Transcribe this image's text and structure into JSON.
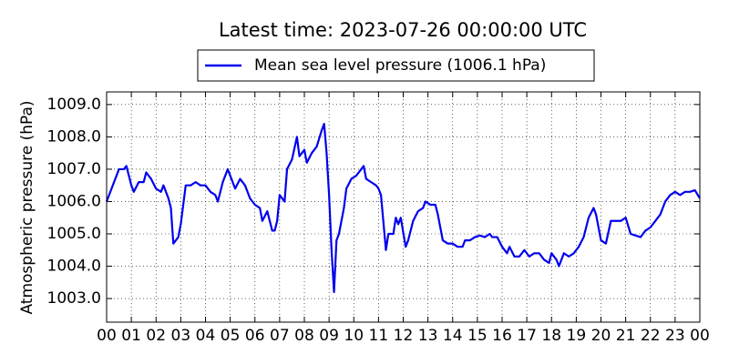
{
  "chart_data": {
    "type": "line",
    "title": "Latest time: 2023-07-26 00:00:00 UTC",
    "y_label": "Atmospheric pressure (hPa)",
    "legend": "upper center",
    "grid": true,
    "xlim": [
      0,
      24
    ],
    "ylim": [
      1002.27,
      1009.39
    ],
    "xticks": [
      {
        "value": 0,
        "label": "00"
      },
      {
        "value": 1,
        "label": "01"
      },
      {
        "value": 2,
        "label": "02"
      },
      {
        "value": 3,
        "label": "03"
      },
      {
        "value": 4,
        "label": "04"
      },
      {
        "value": 5,
        "label": "05"
      },
      {
        "value": 6,
        "label": "06"
      },
      {
        "value": 7,
        "label": "07"
      },
      {
        "value": 8,
        "label": "08"
      },
      {
        "value": 9,
        "label": "09"
      },
      {
        "value": 10,
        "label": "10"
      },
      {
        "value": 11,
        "label": "11"
      },
      {
        "value": 12,
        "label": "12"
      },
      {
        "value": 13,
        "label": "13"
      },
      {
        "value": 14,
        "label": "14"
      },
      {
        "value": 15,
        "label": "15"
      },
      {
        "value": 16,
        "label": "16"
      },
      {
        "value": 17,
        "label": "17"
      },
      {
        "value": 18,
        "label": "18"
      },
      {
        "value": 19,
        "label": "19"
      },
      {
        "value": 20,
        "label": "20"
      },
      {
        "value": 21,
        "label": "21"
      },
      {
        "value": 22,
        "label": "22"
      },
      {
        "value": 23,
        "label": "23"
      },
      {
        "value": 24,
        "label": "00"
      }
    ],
    "yticks": [
      {
        "value": 1003,
        "label": "1003.0"
      },
      {
        "value": 1004,
        "label": "1004.0"
      },
      {
        "value": 1005,
        "label": "1005.0"
      },
      {
        "value": 1006,
        "label": "1006.0"
      },
      {
        "value": 1007,
        "label": "1007.0"
      },
      {
        "value": 1008,
        "label": "1008.0"
      },
      {
        "value": 1009,
        "label": "1009.0"
      }
    ],
    "x": [
      0,
      0.3,
      0.5,
      0.7,
      0.8,
      1.0,
      1.1,
      1.3,
      1.5,
      1.6,
      1.8,
      2.0,
      2.2,
      2.3,
      2.5,
      2.6,
      2.7,
      2.9,
      3.0,
      3.2,
      3.4,
      3.6,
      3.8,
      4.0,
      4.2,
      4.4,
      4.5,
      4.7,
      4.9,
      5.1,
      5.2,
      5.4,
      5.6,
      5.8,
      6.0,
      6.2,
      6.3,
      6.5,
      6.7,
      6.8,
      6.9,
      7.0,
      7.2,
      7.3,
      7.5,
      7.7,
      7.8,
      8.0,
      8.1,
      8.3,
      8.5,
      8.7,
      8.8,
      8.9,
      9.0,
      9.1,
      9.2,
      9.3,
      9.4,
      9.6,
      9.7,
      9.9,
      10.1,
      10.3,
      10.4,
      10.5,
      10.7,
      10.9,
      11.0,
      11.1,
      11.3,
      11.4,
      11.6,
      11.7,
      11.8,
      11.9,
      12.1,
      12.2,
      12.4,
      12.6,
      12.8,
      12.9,
      13.1,
      13.3,
      13.4,
      13.6,
      13.8,
      14.0,
      14.2,
      14.4,
      14.5,
      14.7,
      14.9,
      15.1,
      15.3,
      15.5,
      15.6,
      15.8,
      16.0,
      16.2,
      16.3,
      16.5,
      16.7,
      16.9,
      17.1,
      17.3,
      17.5,
      17.7,
      17.9,
      18.0,
      18.2,
      18.3,
      18.5,
      18.7,
      18.9,
      19.1,
      19.3,
      19.5,
      19.7,
      19.8,
      20.0,
      20.2,
      20.4,
      20.6,
      20.8,
      21.0,
      21.2,
      21.4,
      21.6,
      21.8,
      22.0,
      22.2,
      22.4,
      22.6,
      22.8,
      23.0,
      23.2,
      23.4,
      23.6,
      23.8,
      24.0
    ],
    "series": [
      {
        "name": "Mean sea level pressure (1006.1 hPa)",
        "color": "#0000ee",
        "values": [
          1006.0,
          1006.6,
          1007.0,
          1007.0,
          1007.1,
          1006.5,
          1006.3,
          1006.6,
          1006.6,
          1006.9,
          1006.7,
          1006.4,
          1006.3,
          1006.5,
          1006.1,
          1005.8,
          1004.7,
          1004.9,
          1005.3,
          1006.5,
          1006.5,
          1006.6,
          1006.5,
          1006.5,
          1006.3,
          1006.2,
          1006.0,
          1006.6,
          1007.0,
          1006.6,
          1006.4,
          1006.7,
          1006.5,
          1006.1,
          1005.9,
          1005.8,
          1005.4,
          1005.7,
          1005.1,
          1005.1,
          1005.4,
          1006.2,
          1006.0,
          1007.0,
          1007.3,
          1008.0,
          1007.4,
          1007.6,
          1007.2,
          1007.5,
          1007.7,
          1008.2,
          1008.4,
          1007.5,
          1006.2,
          1004.5,
          1003.2,
          1004.8,
          1005.0,
          1005.8,
          1006.4,
          1006.7,
          1006.8,
          1007.0,
          1007.1,
          1006.7,
          1006.6,
          1006.5,
          1006.4,
          1006.2,
          1004.5,
          1005.0,
          1005.0,
          1005.5,
          1005.3,
          1005.5,
          1004.6,
          1004.8,
          1005.4,
          1005.7,
          1005.8,
          1006.0,
          1005.9,
          1005.9,
          1005.6,
          1004.8,
          1004.7,
          1004.7,
          1004.6,
          1004.6,
          1004.8,
          1004.8,
          1004.9,
          1004.95,
          1004.9,
          1005.0,
          1004.9,
          1004.9,
          1004.6,
          1004.4,
          1004.6,
          1004.3,
          1004.3,
          1004.5,
          1004.3,
          1004.4,
          1004.4,
          1004.2,
          1004.1,
          1004.4,
          1004.2,
          1004.0,
          1004.4,
          1004.3,
          1004.4,
          1004.6,
          1004.9,
          1005.5,
          1005.8,
          1005.6,
          1004.8,
          1004.7,
          1005.4,
          1005.4,
          1005.4,
          1005.5,
          1005.0,
          1004.95,
          1004.9,
          1005.1,
          1005.2,
          1005.4,
          1005.6,
          1006.0,
          1006.2,
          1006.3,
          1006.2,
          1006.3,
          1006.3,
          1006.35,
          1006.1
        ]
      }
    ]
  }
}
